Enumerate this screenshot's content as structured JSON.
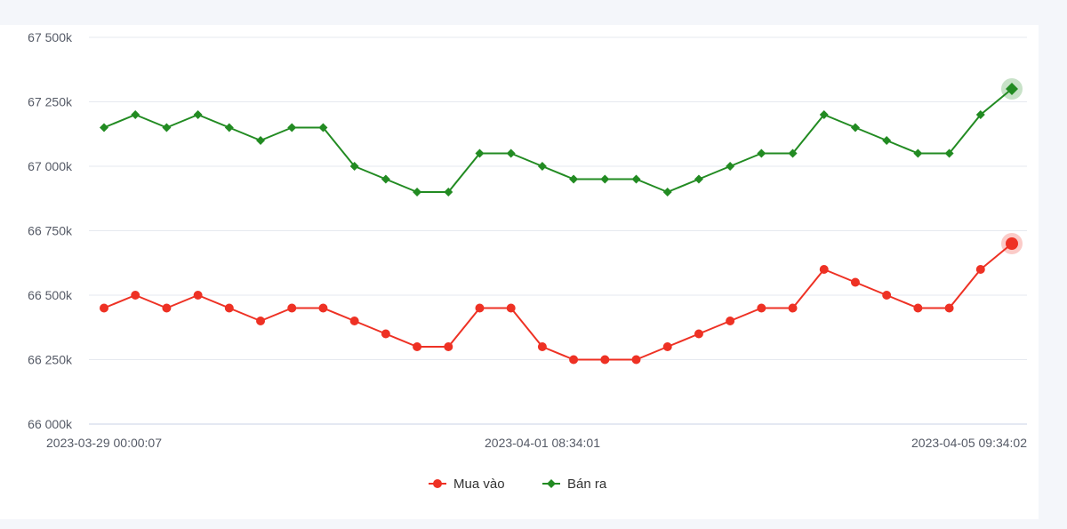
{
  "chart_data": {
    "type": "line",
    "x_tick_labels": [
      "2023-03-29 00:00:07",
      "2023-04-01 08:34:01",
      "2023-04-05 09:34:02"
    ],
    "y_tick_labels": [
      "66 000k",
      "66 250k",
      "66 500k",
      "66 750k",
      "67 000k",
      "67 250k",
      "67 500k"
    ],
    "y_ticks": [
      66000,
      66250,
      66500,
      66750,
      67000,
      67250,
      67500
    ],
    "ylim": [
      66000,
      67500
    ],
    "grid": true,
    "legend_position": "bottom-center",
    "series": [
      {
        "name": "Mua vào",
        "color": "#ee3124",
        "marker": "circle",
        "values": [
          66450,
          66500,
          66450,
          66500,
          66450,
          66400,
          66450,
          66450,
          66400,
          66350,
          66300,
          66300,
          66450,
          66450,
          66300,
          66250,
          66250,
          66250,
          66300,
          66350,
          66400,
          66450,
          66450,
          66600,
          66550,
          66500,
          66450,
          66450,
          66600,
          66700
        ]
      },
      {
        "name": "Bán ra",
        "color": "#228b22",
        "marker": "diamond",
        "values": [
          67150,
          67200,
          67150,
          67200,
          67150,
          67100,
          67150,
          67150,
          67000,
          66950,
          66900,
          66900,
          67050,
          67050,
          67000,
          66950,
          66950,
          66950,
          66900,
          66950,
          67000,
          67050,
          67050,
          67200,
          67150,
          67100,
          67050,
          67050,
          67200,
          67300
        ]
      }
    ]
  }
}
